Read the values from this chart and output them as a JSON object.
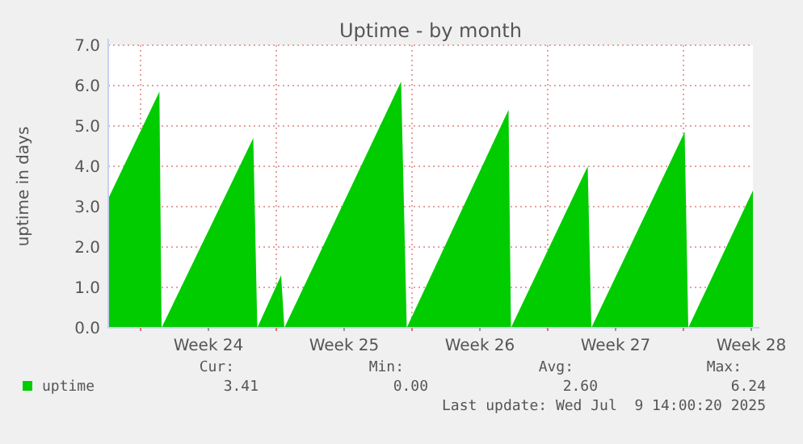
{
  "chart_data": {
    "type": "area",
    "title": "Uptime - by month",
    "ylabel": "uptime in days",
    "x": [
      "2025-06-06T08:00",
      "2025-06-08T23:20",
      "2025-06-09T02:00",
      "2025-06-13T19:30",
      "2025-06-14T00:30",
      "2025-06-15T06:00",
      "2025-06-15T10:00",
      "2025-06-21T10:30",
      "2025-06-21T17:30",
      "2025-06-26T23:30",
      "2025-06-27T02:30",
      "2025-07-01T01:30",
      "2025-07-01T06:00",
      "2025-07-06T01:30",
      "2025-07-06T06:00",
      "2025-07-09T14:00"
    ],
    "series": [
      {
        "name": "uptime",
        "color": "#00cc00",
        "values": [
          3.2,
          5.85,
          0,
          4.7,
          0,
          1.3,
          0,
          6.1,
          0,
          5.4,
          0,
          4.0,
          0,
          4.85,
          0,
          3.4
        ]
      }
    ],
    "xlim": [
      "2025-06-06T08:00",
      "2025-07-09T14:00"
    ],
    "xticks": [
      {
        "value": "2025-06-08T00:00",
        "label": null
      },
      {
        "value": "2025-06-11T12:00",
        "label": "Week 24"
      },
      {
        "value": "2025-06-15T00:00",
        "label": null
      },
      {
        "value": "2025-06-18T12:00",
        "label": "Week 25"
      },
      {
        "value": "2025-06-22T00:00",
        "label": null
      },
      {
        "value": "2025-06-25T12:00",
        "label": "Week 26"
      },
      {
        "value": "2025-06-29T00:00",
        "label": null
      },
      {
        "value": "2025-07-02T12:00",
        "label": "Week 27"
      },
      {
        "value": "2025-07-06T00:00",
        "label": null
      },
      {
        "value": "2025-07-09T12:00",
        "label": "Week 28"
      }
    ],
    "ylim": [
      0,
      7
    ],
    "yticks": [
      {
        "value": 0,
        "label": "0.0"
      },
      {
        "value": 1,
        "label": "1.0"
      },
      {
        "value": 2,
        "label": "2.0"
      },
      {
        "value": 3,
        "label": "3.0"
      },
      {
        "value": 4,
        "label": "4.0"
      },
      {
        "value": 5,
        "label": "5.0"
      },
      {
        "value": 6,
        "label": "6.0"
      },
      {
        "value": 7,
        "label": "7.0"
      }
    ],
    "grid": true,
    "legend": "bottom",
    "annotations": [
      "Cur:",
      "Min:",
      "Avg:",
      "Max:",
      "3.41",
      "0.00",
      "2.60",
      "6.24",
      "Last update: Wed Jul  9 14:00:20 2025"
    ]
  }
}
